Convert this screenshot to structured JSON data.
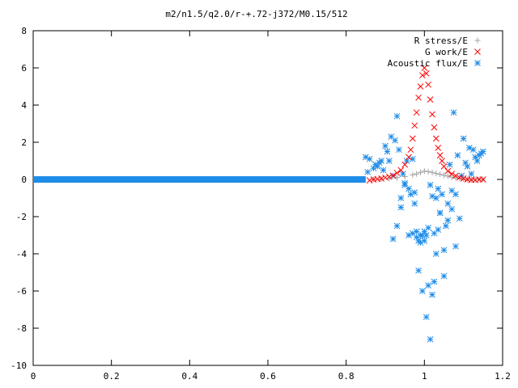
{
  "chart_data": {
    "type": "scatter",
    "title": "m2/n1.5/q2.0/r-+.72-j372/M0.15/512",
    "xlabel": "",
    "ylabel": "",
    "xlim": [
      0,
      1.2
    ],
    "ylim": [
      -10,
      8
    ],
    "x_ticks": [
      "0",
      "0.2",
      "0.4",
      "0.6",
      "0.8",
      "1",
      "1.2"
    ],
    "y_ticks": [
      "8",
      "6",
      "4",
      "2",
      "0",
      "-2",
      "-4",
      "-6",
      "-8",
      "-10"
    ],
    "grid": false,
    "legend_position": "top-right",
    "series": [
      {
        "name": "R stress/E",
        "marker": "+",
        "color": "#a0a0a0",
        "x": [
          0.87,
          0.89,
          0.91,
          0.93,
          0.95,
          0.97,
          0.98,
          0.99,
          1.0,
          1.01,
          1.02,
          1.03,
          1.04,
          1.05,
          1.06,
          1.07,
          1.08,
          1.09,
          1.1,
          1.11,
          1.12,
          1.13,
          1.14,
          1.15
        ],
        "y": [
          0.0,
          0.02,
          0.05,
          0.1,
          0.15,
          0.25,
          0.3,
          0.38,
          0.45,
          0.42,
          0.38,
          0.32,
          0.28,
          0.22,
          0.18,
          0.12,
          0.08,
          0.05,
          0.02,
          0.0,
          -0.02,
          0.0,
          0.0,
          0.0
        ]
      },
      {
        "name": "G work/E",
        "marker": "x",
        "color": "#ff0000",
        "x": [
          0.86,
          0.87,
          0.88,
          0.89,
          0.9,
          0.91,
          0.92,
          0.93,
          0.94,
          0.95,
          0.96,
          0.965,
          0.97,
          0.975,
          0.98,
          0.985,
          0.99,
          0.995,
          1.0,
          1.005,
          1.01,
          1.015,
          1.02,
          1.025,
          1.03,
          1.035,
          1.04,
          1.045,
          1.05,
          1.06,
          1.07,
          1.08,
          1.09,
          1.1,
          1.11,
          1.12,
          1.13,
          1.14,
          1.15
        ],
        "y": [
          -0.05,
          0.0,
          0.02,
          0.05,
          0.1,
          0.15,
          0.2,
          0.35,
          0.5,
          0.8,
          1.2,
          1.6,
          2.2,
          2.9,
          3.6,
          4.4,
          5.0,
          5.6,
          6.0,
          5.7,
          5.1,
          4.3,
          3.5,
          2.8,
          2.2,
          1.7,
          1.3,
          1.0,
          0.7,
          0.45,
          0.3,
          0.2,
          0.1,
          0.05,
          0.0,
          -0.02,
          -0.03,
          0.0,
          0.0
        ]
      },
      {
        "name": "Acoustic flux/E",
        "marker": "*",
        "color": "#1e8ce8",
        "x": [
          0.85,
          0.855,
          0.86,
          0.87,
          0.875,
          0.88,
          0.885,
          0.89,
          0.895,
          0.9,
          0.905,
          0.91,
          0.915,
          0.92,
          0.925,
          0.93,
          0.935,
          0.94,
          0.945,
          0.95,
          0.955,
          0.96,
          0.965,
          0.97,
          0.975,
          0.98,
          0.985,
          0.99,
          0.995,
          1.0,
          1.005,
          1.01,
          1.015,
          1.02,
          1.025,
          1.03,
          1.035,
          1.04,
          1.045,
          1.05,
          1.055,
          1.06,
          1.065,
          1.07,
          1.075,
          1.08,
          1.085,
          1.09,
          1.095,
          1.1,
          1.105,
          1.11,
          1.115,
          1.12,
          1.125,
          1.13,
          1.135,
          1.14,
          1.145,
          1.15,
          0.92,
          0.93,
          0.94,
          0.95,
          0.96,
          0.97,
          0.975,
          0.98,
          0.985,
          0.99,
          0.995,
          1.0,
          1.005,
          1.01,
          1.015,
          1.02,
          1.025,
          1.03,
          1.035,
          1.04,
          1.05,
          1.06,
          1.07,
          1.08
        ],
        "y": [
          1.2,
          0.4,
          1.1,
          0.6,
          0.8,
          0.7,
          0.9,
          1.0,
          0.5,
          1.8,
          1.5,
          1.0,
          2.3,
          0.2,
          2.1,
          3.4,
          1.6,
          -1.0,
          0.3,
          -0.2,
          1.0,
          -0.5,
          -0.8,
          1.1,
          -1.3,
          -2.8,
          -4.9,
          -3.0,
          -6.0,
          -3.3,
          -7.4,
          -5.7,
          -8.6,
          -6.2,
          -5.5,
          -4.0,
          -2.7,
          -1.8,
          -0.8,
          -5.2,
          -2.5,
          -1.3,
          0.8,
          -0.6,
          3.6,
          -3.6,
          1.3,
          -2.1,
          0.2,
          2.2,
          0.9,
          0.7,
          1.7,
          0.3,
          1.6,
          1.2,
          1.0,
          1.3,
          1.4,
          1.5,
          -3.2,
          -2.5,
          -1.5,
          -0.3,
          -3.0,
          -2.9,
          -0.7,
          -3.1,
          -3.3,
          -3.4,
          -3.0,
          -2.8,
          -3.0,
          -2.6,
          -0.3,
          -0.9,
          -2.9,
          -1.0,
          -0.5,
          -1.8,
          -3.8,
          -2.2,
          -1.6,
          -0.8
        ]
      }
    ],
    "zero_band": {
      "series": "Acoustic flux/E",
      "color": "#1e8ce8",
      "x_from": 0.0,
      "x_to": 0.85,
      "y": 0
    }
  }
}
